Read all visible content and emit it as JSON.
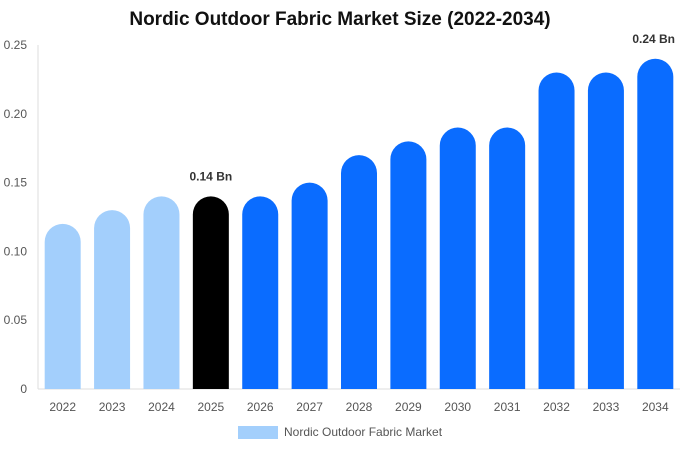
{
  "chart_data": {
    "type": "bar",
    "title": "Nordic Outdoor Fabric Market Size (2022-2034)",
    "xlabel": "",
    "ylabel": "",
    "ylim": [
      0,
      0.25
    ],
    "yticks": [
      "0",
      "0.05",
      "0.10",
      "0.15",
      "0.20",
      "0.25"
    ],
    "categories": [
      "2022",
      "2023",
      "2024",
      "2025",
      "2026",
      "2027",
      "2028",
      "2029",
      "2030",
      "2031",
      "2032",
      "2033",
      "2034"
    ],
    "series": [
      {
        "name": "Nordic Outdoor Fabric Market",
        "values": [
          0.12,
          0.13,
          0.14,
          0.14,
          0.14,
          0.15,
          0.17,
          0.18,
          0.19,
          0.19,
          0.23,
          0.23,
          0.24
        ]
      }
    ],
    "data_labels": [
      {
        "category": "2025",
        "text": "0.14 Bn"
      },
      {
        "category": "2034",
        "text": "0.24 Bn"
      }
    ],
    "bar_colors": {
      "historical": "#a3cffc",
      "current": "#000000",
      "forecast": "#0a6cff"
    },
    "bar_color_index": [
      "historical",
      "historical",
      "historical",
      "current",
      "forecast",
      "forecast",
      "forecast",
      "forecast",
      "forecast",
      "forecast",
      "forecast",
      "forecast",
      "forecast"
    ],
    "grid": false,
    "legend": {
      "position": "bottom",
      "label": "Nordic Outdoor Fabric Market",
      "color": "#a3cffc"
    }
  }
}
